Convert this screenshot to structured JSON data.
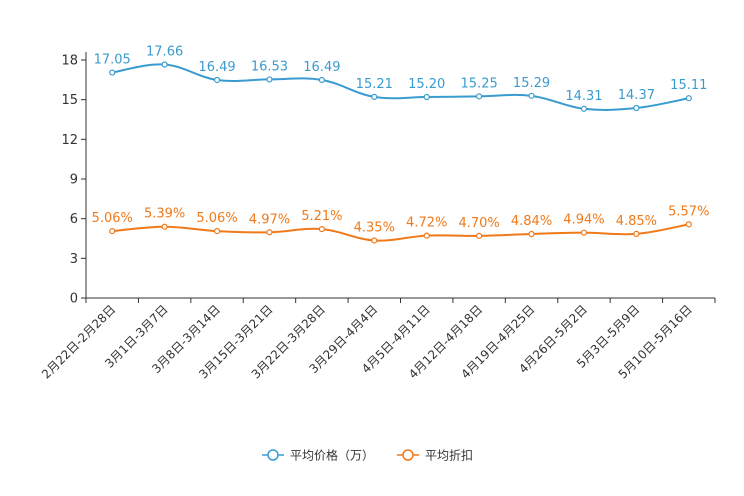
{
  "chart_data": {
    "type": "line",
    "title": "",
    "xlabel": "",
    "ylabel": "",
    "ylim": [
      0,
      18
    ],
    "yticks": [
      0,
      3,
      6,
      9,
      12,
      15,
      18
    ],
    "categories": [
      "2月22日-2月28日",
      "3月1日-3月7日",
      "3月8日-3月14日",
      "3月15日-3月21日",
      "3月22日-3月28日",
      "3月29日-4月4日",
      "4月5日-4月11日",
      "4月12日-4月18日",
      "4月19日-4月25日",
      "4月26日-5月2日",
      "5月3日-5月9日",
      "5月10日-5月16日"
    ],
    "series": [
      {
        "name": "平均价格（万）",
        "color": "#3a9bd0",
        "values": [
          17.05,
          17.66,
          16.49,
          16.53,
          16.49,
          15.21,
          15.2,
          15.25,
          15.29,
          14.31,
          14.37,
          15.11
        ],
        "labels": [
          "17.05",
          "17.66",
          "16.49",
          "16.53",
          "16.49",
          "15.21",
          "15.20",
          "15.25",
          "15.29",
          "14.31",
          "14.37",
          "15.11"
        ]
      },
      {
        "name": "平均折扣",
        "color": "#f07a1a",
        "values": [
          5.06,
          5.39,
          5.06,
          4.97,
          5.21,
          4.35,
          4.72,
          4.7,
          4.84,
          4.94,
          4.85,
          5.57
        ],
        "labels": [
          "5.06%",
          "5.39%",
          "5.06%",
          "4.97%",
          "5.21%",
          "4.35%",
          "4.72%",
          "4.70%",
          "4.84%",
          "4.94%",
          "4.85%",
          "5.57%"
        ]
      }
    ],
    "legend": "bottom-center",
    "grid": false
  }
}
